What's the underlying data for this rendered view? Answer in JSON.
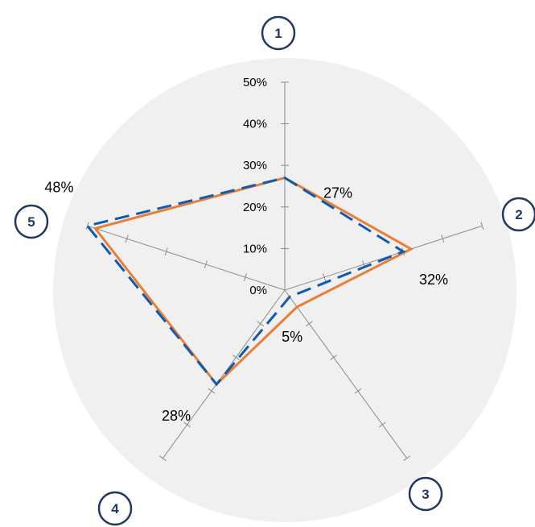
{
  "chart_data": {
    "type": "radar",
    "categories": [
      "1",
      "2",
      "3",
      "4",
      "5"
    ],
    "r_ticks": [
      "0%",
      "10%",
      "20%",
      "30%",
      "40%",
      "50%"
    ],
    "rlim": [
      0,
      50
    ],
    "series": [
      {
        "values": [
          27,
          32,
          5,
          28,
          48
        ],
        "color": "#ed7d31",
        "style": "solid"
      },
      {
        "values": [
          27,
          30,
          2,
          28,
          50
        ],
        "color": "#0a5cb8",
        "style": "dashed"
      }
    ],
    "data_labels": [
      "27%",
      "32%",
      "5%",
      "28%",
      "48%"
    ],
    "grid": false,
    "background_color": "#f0f0f0",
    "axis_color": "#8c8c8c",
    "marker_color": "#1f3864"
  }
}
